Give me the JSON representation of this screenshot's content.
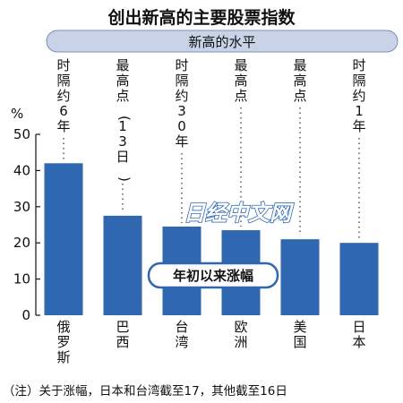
{
  "title": "创出新高的主要股票指数",
  "band_label": "新高的水平",
  "callout": "年初以来涨幅",
  "watermark": "日经中文网",
  "footnote": "（注）关于涨幅，日本和台湾截至17，其他截至16日",
  "colors": {
    "bar": "#2f67b1",
    "band": "#c8d3e8",
    "band_border": "#7c8fb6",
    "dots": "#555555"
  },
  "chart_data": {
    "type": "bar",
    "title": "创出新高的主要股票指数",
    "ylabel": "%",
    "ylim": [
      0,
      50
    ],
    "yticks": [
      0,
      10,
      20,
      30,
      40,
      50
    ],
    "grid": false,
    "categories": [
      "俄罗斯",
      "巴西",
      "台湾",
      "欧洲",
      "美国",
      "日本"
    ],
    "values": [
      42,
      27.5,
      24.5,
      23.5,
      21,
      20
    ],
    "annotations": [
      "时隔约6年",
      "最高点（13日）",
      "时隔约30年",
      "最高点",
      "最高点",
      "时隔约1年"
    ]
  }
}
